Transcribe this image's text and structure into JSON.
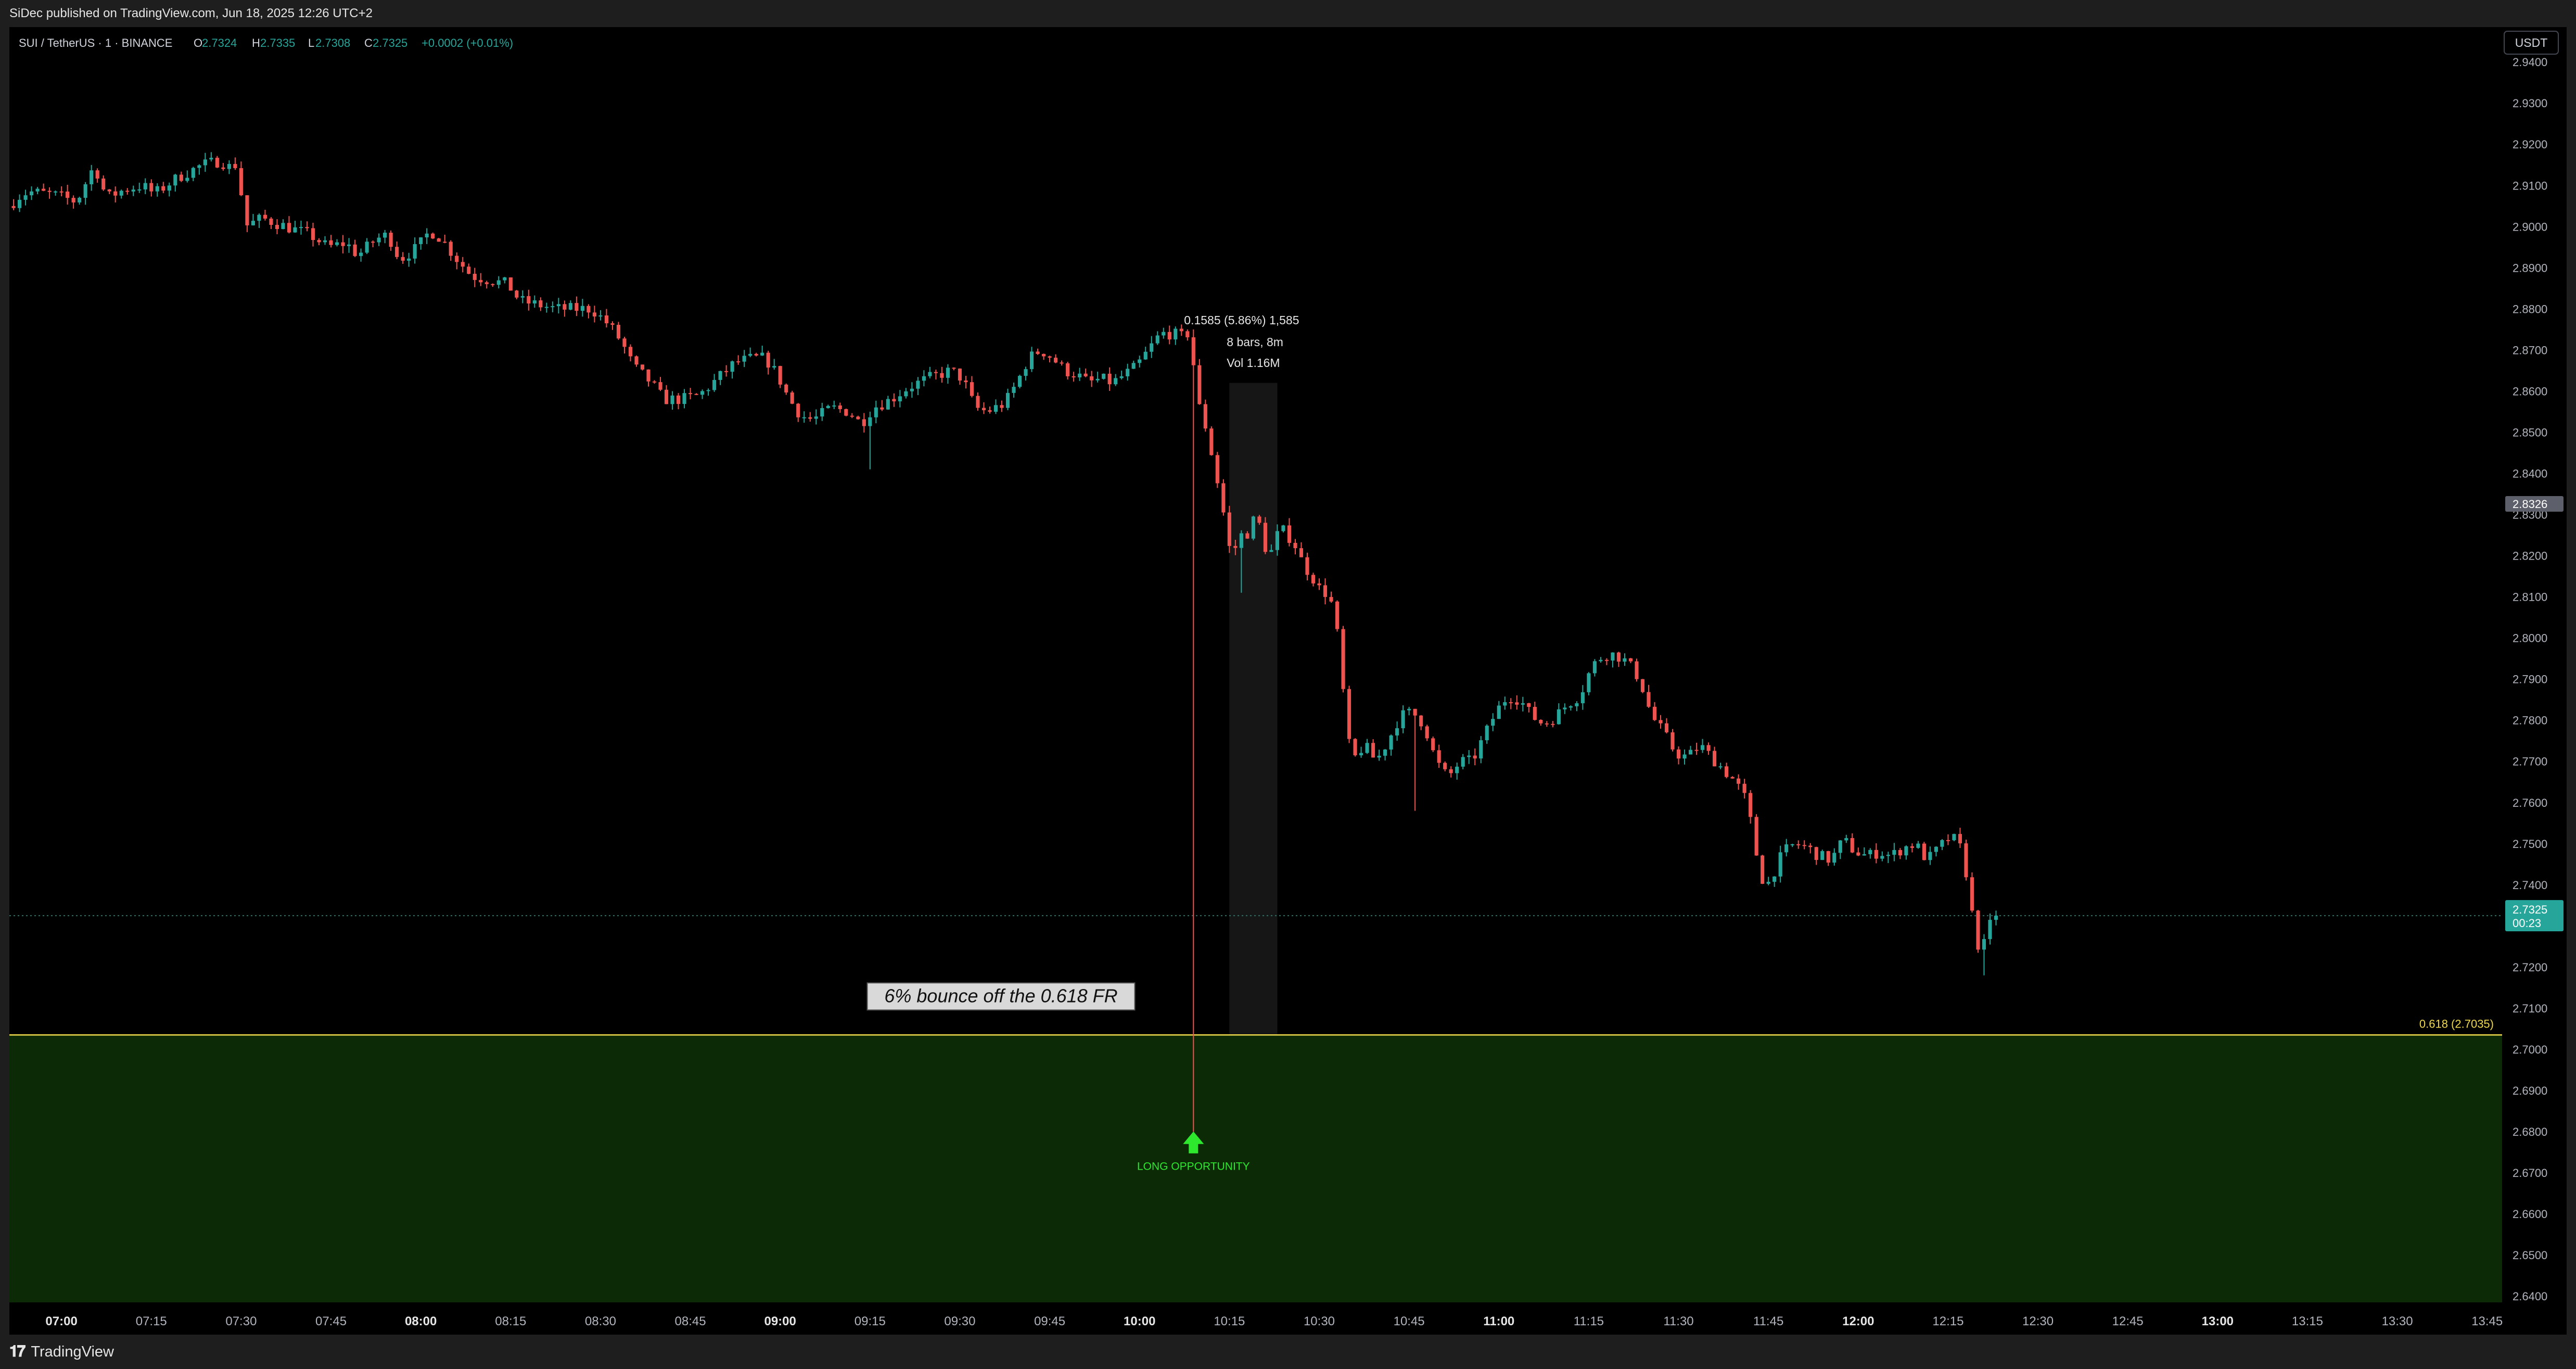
{
  "header": {
    "published": "SiDec published on TradingView.com, Jun 18, 2025 12:26 UTC+2"
  },
  "legend": {
    "symbol": "SUI / TetherUS · 1 · BINANCE",
    "open_label": "O",
    "open": "2.7324",
    "high_label": "H",
    "high": "2.7335",
    "low_label": "L",
    "low": "2.7308",
    "close_label": "C",
    "close": "2.7325",
    "change": "+0.0002 (+0.01%)"
  },
  "currency": "USDT",
  "footer": {
    "brand": "TradingView"
  },
  "chart_data": {
    "type": "candlestick",
    "symbol": "SUI / TetherUS",
    "interval": "1",
    "exchange": "BINANCE",
    "y_ticks": [
      "2.9400",
      "2.9300",
      "2.9200",
      "2.9100",
      "2.9000",
      "2.8900",
      "2.8800",
      "2.8700",
      "2.8600",
      "2.8500",
      "2.8400",
      "2.8300",
      "2.8200",
      "2.8100",
      "2.8000",
      "2.7900",
      "2.7800",
      "2.7700",
      "2.7600",
      "2.7500",
      "2.7400",
      "2.7300",
      "2.7200",
      "2.7100",
      "2.7000",
      "2.6900",
      "2.6800",
      "2.6700",
      "2.6600",
      "2.6500",
      "2.6400"
    ],
    "ylim": [
      2.6385,
      2.9485
    ],
    "x_ticks": [
      {
        "label": "07:00",
        "min": 420,
        "bold": true
      },
      {
        "label": "07:15",
        "min": 435,
        "bold": false
      },
      {
        "label": "07:30",
        "min": 450,
        "bold": false
      },
      {
        "label": "07:45",
        "min": 465,
        "bold": false
      },
      {
        "label": "08:00",
        "min": 480,
        "bold": true
      },
      {
        "label": "08:15",
        "min": 495,
        "bold": false
      },
      {
        "label": "08:30",
        "min": 510,
        "bold": false
      },
      {
        "label": "08:45",
        "min": 525,
        "bold": false
      },
      {
        "label": "09:00",
        "min": 540,
        "bold": true
      },
      {
        "label": "09:15",
        "min": 555,
        "bold": false
      },
      {
        "label": "09:30",
        "min": 570,
        "bold": false
      },
      {
        "label": "09:45",
        "min": 585,
        "bold": false
      },
      {
        "label": "10:00",
        "min": 600,
        "bold": true
      },
      {
        "label": "10:15",
        "min": 615,
        "bold": false
      },
      {
        "label": "10:30",
        "min": 630,
        "bold": false
      },
      {
        "label": "10:45",
        "min": 645,
        "bold": false
      },
      {
        "label": "11:00",
        "min": 660,
        "bold": true
      },
      {
        "label": "11:15",
        "min": 675,
        "bold": false
      },
      {
        "label": "11:30",
        "min": 690,
        "bold": false
      },
      {
        "label": "11:45",
        "min": 705,
        "bold": false
      },
      {
        "label": "12:00",
        "min": 720,
        "bold": true
      },
      {
        "label": "12:15",
        "min": 735,
        "bold": false
      },
      {
        "label": "12:30",
        "min": 750,
        "bold": false
      },
      {
        "label": "12:45",
        "min": 765,
        "bold": false
      },
      {
        "label": "13:00",
        "min": 780,
        "bold": true
      },
      {
        "label": "13:15",
        "min": 795,
        "bold": false
      },
      {
        "label": "13:30",
        "min": 810,
        "bold": false
      },
      {
        "label": "13:45",
        "min": 825,
        "bold": false
      }
    ],
    "xlim_min": [
      411.3,
      827.5
    ],
    "close_series_anchors": [
      [
        411.5,
        2.904
      ],
      [
        413,
        2.907
      ],
      [
        415,
        2.9085
      ],
      [
        418,
        2.908
      ],
      [
        420,
        2.9075
      ],
      [
        423,
        2.906
      ],
      [
        426,
        2.915
      ],
      [
        428,
        2.907
      ],
      [
        431,
        2.909
      ],
      [
        434,
        2.91
      ],
      [
        436,
        2.908
      ],
      [
        440,
        2.912
      ],
      [
        444,
        2.915
      ],
      [
        447,
        2.916
      ],
      [
        449,
        2.914
      ],
      [
        450,
        2.916
      ],
      [
        451,
        2.9
      ],
      [
        454,
        2.902
      ],
      [
        458,
        2.9
      ],
      [
        462,
        2.898
      ],
      [
        465,
        2.895
      ],
      [
        468,
        2.896
      ],
      [
        470,
        2.893
      ],
      [
        473,
        2.897
      ],
      [
        475,
        2.898
      ],
      [
        477,
        2.892
      ],
      [
        480,
        2.895
      ],
      [
        482,
        2.899
      ],
      [
        484,
        2.897
      ],
      [
        486,
        2.893
      ],
      [
        489,
        2.888
      ],
      [
        492,
        2.887
      ],
      [
        495,
        2.886
      ],
      [
        497,
        2.882
      ],
      [
        500,
        2.881
      ],
      [
        503,
        2.88
      ],
      [
        506,
        2.88
      ],
      [
        509,
        2.88
      ],
      [
        512,
        2.876
      ],
      [
        514,
        2.872
      ],
      [
        516,
        2.866
      ],
      [
        519,
        2.862
      ],
      [
        521,
        2.858
      ],
      [
        524,
        2.858
      ],
      [
        527,
        2.859
      ],
      [
        530,
        2.863
      ],
      [
        533,
        2.867
      ],
      [
        536,
        2.868
      ],
      [
        538,
        2.868
      ],
      [
        540,
        2.864
      ],
      [
        542,
        2.858
      ],
      [
        544,
        2.854
      ],
      [
        546,
        2.853
      ],
      [
        549,
        2.856
      ],
      [
        552,
        2.855
      ],
      [
        554,
        2.852
      ],
      [
        556,
        2.856
      ],
      [
        559,
        2.858
      ],
      [
        562,
        2.861
      ],
      [
        565,
        2.863
      ],
      [
        567,
        2.864
      ],
      [
        569,
        2.865
      ],
      [
        571,
        2.863
      ],
      [
        573,
        2.856
      ],
      [
        575,
        2.855
      ],
      [
        578,
        2.857
      ],
      [
        580,
        2.862
      ],
      [
        582,
        2.868
      ],
      [
        584,
        2.87
      ],
      [
        586,
        2.868
      ],
      [
        588,
        2.865
      ],
      [
        590,
        2.864
      ],
      [
        592,
        2.862
      ],
      [
        594,
        2.863
      ],
      [
        596,
        2.862
      ],
      [
        598,
        2.864
      ],
      [
        600,
        2.866
      ],
      [
        602,
        2.87
      ],
      [
        604,
        2.874
      ],
      [
        606,
        2.874
      ],
      [
        608,
        2.873
      ],
      [
        609,
        2.875
      ],
      [
        610,
        2.858
      ],
      [
        611,
        2.854
      ],
      [
        612,
        2.849
      ],
      [
        613,
        2.841
      ],
      [
        614,
        2.835
      ],
      [
        615,
        2.826
      ],
      [
        616,
        2.818
      ],
      [
        617,
        2.826
      ],
      [
        618,
        2.824
      ],
      [
        619,
        2.827
      ],
      [
        620,
        2.83
      ],
      [
        621,
        2.825
      ],
      [
        622,
        2.819
      ],
      [
        623,
        2.823
      ],
      [
        624,
        2.827
      ],
      [
        625,
        2.825
      ],
      [
        626,
        2.824
      ],
      [
        627,
        2.821
      ],
      [
        628,
        2.817
      ],
      [
        629,
        2.816
      ],
      [
        630,
        2.813
      ],
      [
        631,
        2.811
      ],
      [
        632,
        2.811
      ],
      [
        633,
        2.806
      ],
      [
        634,
        2.796
      ],
      [
        635,
        2.778
      ],
      [
        636,
        2.77
      ],
      [
        638,
        2.774
      ],
      [
        640,
        2.77
      ],
      [
        642,
        2.775
      ],
      [
        644,
        2.781
      ],
      [
        646,
        2.782
      ],
      [
        648,
        2.779
      ],
      [
        650,
        2.77
      ],
      [
        652,
        2.766
      ],
      [
        654,
        2.77
      ],
      [
        656,
        2.77
      ],
      [
        658,
        2.776
      ],
      [
        660,
        2.782
      ],
      [
        662,
        2.786
      ],
      [
        664,
        2.785
      ],
      [
        666,
        2.781
      ],
      [
        668,
        2.779
      ],
      [
        670,
        2.781
      ],
      [
        672,
        2.784
      ],
      [
        674,
        2.786
      ],
      [
        676,
        2.793
      ],
      [
        678,
        2.796
      ],
      [
        680,
        2.796
      ],
      [
        682,
        2.794
      ],
      [
        684,
        2.79
      ],
      [
        686,
        2.781
      ],
      [
        688,
        2.777
      ],
      [
        690,
        2.772
      ],
      [
        692,
        2.771
      ],
      [
        694,
        2.774
      ],
      [
        696,
        2.771
      ],
      [
        698,
        2.768
      ],
      [
        700,
        2.765
      ],
      [
        702,
        2.76
      ],
      [
        703,
        2.751
      ],
      [
        704,
        2.744
      ],
      [
        705,
        2.739
      ],
      [
        706,
        2.742
      ],
      [
        708,
        2.748
      ],
      [
        710,
        2.75
      ],
      [
        712,
        2.749
      ],
      [
        714,
        2.747
      ],
      [
        716,
        2.746
      ],
      [
        718,
        2.751
      ],
      [
        720,
        2.748
      ],
      [
        722,
        2.747
      ],
      [
        724,
        2.748
      ],
      [
        726,
        2.747
      ],
      [
        728,
        2.749
      ],
      [
        730,
        2.75
      ],
      [
        732,
        2.746
      ],
      [
        734,
        2.749
      ],
      [
        736,
        2.752
      ],
      [
        738,
        2.748
      ],
      [
        739,
        2.738
      ],
      [
        740,
        2.728
      ],
      [
        741,
        2.723
      ],
      [
        742,
        2.728
      ],
      [
        743,
        2.7325
      ]
    ],
    "drop_start_min": 609,
    "last_price": "2.7325",
    "last_countdown": "00:23",
    "crosshair_price": "2.8326",
    "fib_level": {
      "label": "0.618 (2.7035)",
      "price": 2.7035
    },
    "measure": {
      "line1": "0.1585 (5.86%) 1,585",
      "line2": "8 bars, 8m",
      "line3": "Vol 1.16M",
      "from_min": 615,
      "to_min": 623,
      "top_price": 2.862,
      "bottom_price": 2.7035
    },
    "spike": {
      "min": 609,
      "high": 2.875,
      "low": 2.68
    },
    "annotation": "6% bounce off the 0.618 FR",
    "signal_label": "LONG OPPORTUNITY",
    "colors": {
      "up": "#26a69a",
      "down": "#ef5350",
      "zone": "#0d2a07",
      "fib": "#f0d94a",
      "signal": "#2ee82e",
      "last_bg": "#26a69a"
    }
  }
}
